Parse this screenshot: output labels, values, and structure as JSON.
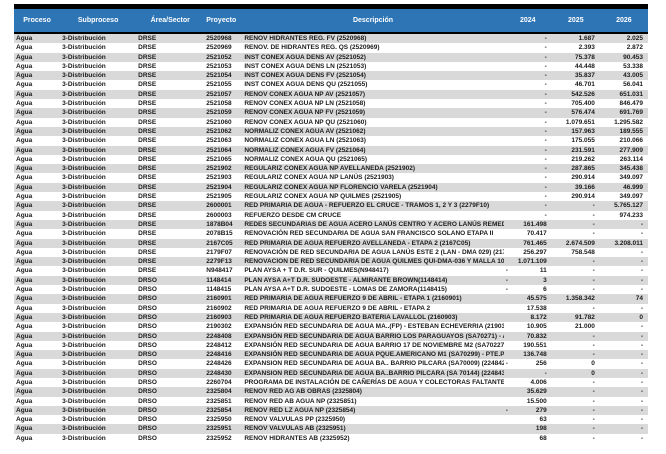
{
  "table": {
    "columns": [
      {
        "key": "proceso",
        "label": "Proceso"
      },
      {
        "key": "subproceso",
        "label": "Subproceso"
      },
      {
        "key": "area",
        "label": "Área/Sector"
      },
      {
        "key": "proyecto",
        "label": "Proyecto"
      },
      {
        "key": "descripcion",
        "label": "Descripción"
      },
      {
        "key": "y2024",
        "label": "2024"
      },
      {
        "key": "y2025",
        "label": "2025"
      },
      {
        "key": "y2026",
        "label": "2026"
      }
    ],
    "rows": [
      {
        "proceso": "Agua",
        "subproceso": "3-Distribución",
        "area": "DRSE",
        "proyecto": "2520968",
        "descripcion": "RENOV HIDRANTES REG. FV (2520968)",
        "y2024": "-",
        "y2025": "1.687",
        "y2026": "2.025"
      },
      {
        "proceso": "Agua",
        "subproceso": "3-Distribución",
        "area": "DRSE",
        "proyecto": "2520969",
        "descripcion": "RENOV. DE HIDRANTES REG. QS (2520969)",
        "y2024": "-",
        "y2025": "2.393",
        "y2026": "2.872"
      },
      {
        "proceso": "Agua",
        "subproceso": "3-Distribución",
        "area": "DRSE",
        "proyecto": "2521052",
        "descripcion": "INST CONEX AGUA DENS  AV (2521052)",
        "y2024": "-",
        "y2025": "75.378",
        "y2026": "90.453"
      },
      {
        "proceso": "Agua",
        "subproceso": "3-Distribución",
        "area": "DRSE",
        "proyecto": "2521053",
        "descripcion": "INST CONEX AGUA DENS  LN (2521053)",
        "y2024": "-",
        "y2025": "44.448",
        "y2026": "53.338"
      },
      {
        "proceso": "Agua",
        "subproceso": "3-Distribución",
        "area": "DRSE",
        "proyecto": "2521054",
        "descripcion": "INST CONEX AGUA DENS  FV (2521054)",
        "y2024": "-",
        "y2025": "35.837",
        "y2026": "43.005"
      },
      {
        "proceso": "Agua",
        "subproceso": "3-Distribución",
        "area": "DRSE",
        "proyecto": "2521055",
        "descripcion": "INST CONEX AGUA DENS  QU (2521055)",
        "y2024": "-",
        "y2025": "46.701",
        "y2026": "56.041"
      },
      {
        "proceso": "Agua",
        "subproceso": "3-Distribución",
        "area": "DRSE",
        "proyecto": "2521057",
        "descripcion": "RENOV CONEX AGUA NP  AV (2521057)",
        "y2024": "-",
        "y2025": "542.526",
        "y2026": "651.031"
      },
      {
        "proceso": "Agua",
        "subproceso": "3-Distribución",
        "area": "DRSE",
        "proyecto": "2521058",
        "descripcion": "RENOV CONEX AGUA NP  LN (2521058)",
        "y2024": "-",
        "y2025": "705.400",
        "y2026": "846.479"
      },
      {
        "proceso": "Agua",
        "subproceso": "3-Distribución",
        "area": "DRSE",
        "proyecto": "2521059",
        "descripcion": "RENOV CONEX AGUA NP  FV (2521059)",
        "y2024": "-",
        "y2025": "576.474",
        "y2026": "691.769"
      },
      {
        "proceso": "Agua",
        "subproceso": "3-Distribución",
        "area": "DRSE",
        "proyecto": "2521060",
        "descripcion": "RENOV CONEX AGUA NP  QU (2521060)",
        "y2024": "-",
        "y2025": "1.079.651",
        "y2026": "1.295.582"
      },
      {
        "proceso": "Agua",
        "subproceso": "3-Distribución",
        "area": "DRSE",
        "proyecto": "2521062",
        "descripcion": "NORMALIZ CONEX AGUA  AV (2521062)",
        "y2024": "-",
        "y2025": "157.963",
        "y2026": "189.555"
      },
      {
        "proceso": "Agua",
        "subproceso": "3-Distribución",
        "area": "DRSE",
        "proyecto": "2521063",
        "descripcion": "NORMALIZ CONEX AGUA  LN (2521063)",
        "y2024": "-",
        "y2025": "175.055",
        "y2026": "210.066"
      },
      {
        "proceso": "Agua",
        "subproceso": "3-Distribución",
        "area": "DRSE",
        "proyecto": "2521064",
        "descripcion": "NORMALIZ CONEX AGUA  FV (2521064)",
        "y2024": "-",
        "y2025": "231.591",
        "y2026": "277.909"
      },
      {
        "proceso": "Agua",
        "subproceso": "3-Distribución",
        "area": "DRSE",
        "proyecto": "2521065",
        "descripcion": "NORMALIZ CONEX AGUA  QU (2521065)",
        "y2024": "-",
        "y2025": "219.262",
        "y2026": "263.114"
      },
      {
        "proceso": "Agua",
        "subproceso": "3-Distribución",
        "area": "DRSE",
        "proyecto": "2521902",
        "descripcion": "REGULARIZ CONEX AGUA NP AVELLANEDA (2521902)",
        "y2024": "-",
        "y2025": "287.865",
        "y2026": "345.438"
      },
      {
        "proceso": "Agua",
        "subproceso": "3-Distribución",
        "area": "DRSE",
        "proyecto": "2521903",
        "descripcion": "REGULARIZ CONEX AGUA NP LANÚS (2521903)",
        "y2024": "-",
        "y2025": "290.914",
        "y2026": "349.097"
      },
      {
        "proceso": "Agua",
        "subproceso": "3-Distribución",
        "area": "DRSE",
        "proyecto": "2521904",
        "descripcion": "REGULARIZ CONEX AGUA NP FLORENCIO VARELA (2521904)",
        "y2024": "-",
        "y2025": "39.166",
        "y2026": "46.999"
      },
      {
        "proceso": "Agua",
        "subproceso": "3-Distribución",
        "area": "DRSE",
        "proyecto": "2521905",
        "descripcion": "REGULARIZ CONEX AGUA NP QUILMES (2521905)",
        "y2024": "-",
        "y2025": "290.914",
        "y2026": "349.097"
      },
      {
        "proceso": "Agua",
        "subproceso": "3-Distribución",
        "area": "DRSE",
        "proyecto": "2600001",
        "descripcion": "RED PRIMARIA DE AGUA - REFUERZO EL CRUCE - TRAMOS 1, 2 Y 3 (2279F10)",
        "y2024": "-",
        "y2025": "-",
        "y2026": "5.765.127"
      },
      {
        "proceso": "Agua",
        "subproceso": "3-Distribución",
        "area": "DRSE",
        "proyecto": "2600003",
        "descripcion": "REFUERZO DESDE CM CRUCE",
        "y2024": "-",
        "y2025": "-",
        "y2026": "974.233"
      },
      {
        "proceso": "Agua",
        "subproceso": "3-Distribución",
        "area": "DRSE",
        "proyecto": "1878B04",
        "descripcion": "REDES SECUNDARIAS DE AGUA ACERO LANÚS CENTRO Y ACERO LANÚS REMEDIOS DE ESCALA",
        "y2024": "161.498",
        "y2025": "-",
        "y2026": "-"
      },
      {
        "proceso": "Agua",
        "subproceso": "3-Distribución",
        "area": "DRSE",
        "proyecto": "2078B15",
        "descripcion": "RENOVACIÓN  RED SECUNDARIA DE AGUA SAN FRANCISCO SOLANO  ETAPA II",
        "y2024": "70.417",
        "y2025": "-",
        "y2026": "-"
      },
      {
        "proceso": "Agua",
        "subproceso": "3-Distribución",
        "area": "DRSE",
        "proyecto": "2167C05",
        "descripcion": "RED PRIMARIA DE AGUA REFUERZO AVELLANEDA - ETAPA 2 (2167C05)",
        "y2024": "761.465",
        "y2025": "2.674.509",
        "y2026": "3.208.011"
      },
      {
        "proceso": "Agua",
        "subproceso": "3-Distribución",
        "area": "DRSE",
        "proyecto": "2179F07",
        "descripcion": "RENOVACIÓN DE RED SECUNDARIA DE AGUA LANÚS ESTE 2 (LAN - DMA 029) (2179F07)",
        "y2024": "256.297",
        "y2025": "758.548",
        "y2026": "-"
      },
      {
        "proceso": "Agua",
        "subproceso": "3-Distribución",
        "area": "DRSE",
        "proyecto": "2279F13",
        "descripcion": "RENOVACION DE RED SECUNDARIA DE AGUA QUILMES QUI-DMA-036 Y MALLA 102",
        "y2024": "1.071.109",
        "y2025": "-",
        "y2026": "-"
      },
      {
        "proceso": "Agua",
        "subproceso": "3-Distribución",
        "area": "DRSE",
        "proyecto": "N948417",
        "descripcion": "PLAN AYSA + T D.R. SUR - QUILMES(N948417)",
        "y2024": "- 11",
        "y2025": "-",
        "y2026": "-"
      },
      {
        "proceso": "Agua",
        "subproceso": "3-Distribución",
        "area": "DRSO",
        "proyecto": "1148414",
        "descripcion": "PLAN AYSA A+T D.R. SUDOESTE - ALMIRANTE BROWN(1148414)",
        "y2024": "- 3",
        "y2025": "-",
        "y2026": "-"
      },
      {
        "proceso": "Agua",
        "subproceso": "3-Distribución",
        "area": "DRSO",
        "proyecto": "1148415",
        "descripcion": "PLAN AYSA A+T D.R. SUDOESTE - LOMAS DE ZAMORA(1148415)",
        "y2024": "- 6",
        "y2025": "-",
        "y2026": "-"
      },
      {
        "proceso": "Agua",
        "subproceso": "3-Distribución",
        "area": "DRSO",
        "proyecto": "2160901",
        "descripcion": "RED PRIMARIA DE AGUA REFUERZO 9 DE ABRIL - ETAPA 1 (2160901)",
        "y2024": "45.575",
        "y2025": "1.358.342",
        "y2026": "74"
      },
      {
        "proceso": "Agua",
        "subproceso": "3-Distribución",
        "area": "DRSO",
        "proyecto": "2160902",
        "descripcion": "RED PRIMARIA DE AGUA REFUERZO 9 DE ABRIL - ETAPA 2",
        "y2024": "17.538",
        "y2025": "-",
        "y2026": "-"
      },
      {
        "proceso": "Agua",
        "subproceso": "3-Distribución",
        "area": "DRSO",
        "proyecto": "2160903",
        "descripcion": "RED PRIMARIA DE AGUA REFUERZO BATERIA LAVALLOL (2160903)",
        "y2024": "8.172",
        "y2025": "91.782",
        "y2026": "0"
      },
      {
        "proceso": "Agua",
        "subproceso": "3-Distribución",
        "area": "DRSO",
        "proyecto": "2190302",
        "descripcion": "EXPANSIÓN RED SECUNDARIA DE AGUA MA..(FP) - ESTEBAN ECHEVERRIA (2190302)",
        "y2024": "10.905",
        "y2025": "21.000",
        "y2026": "-"
      },
      {
        "proceso": "Agua",
        "subproceso": "3-Distribución",
        "area": "DRSO",
        "proyecto": "2248408",
        "descripcion": "EXPANSIÓN RED SECUNDARIA DE AGUA BARRIO LOS PARAGUAYOS (SA70271) - ALMIRANTE BR -",
        "y2024": "70.832",
        "y2025": "-",
        "y2026": "-"
      },
      {
        "proceso": "Agua",
        "subproceso": "3-Distribución",
        "area": "DRSO",
        "proyecto": "2248412",
        "descripcion": "EXPANSIÓN RED SECUNDARIA DE AGUA BARRIO 17 DE NOVIEMBRE M2 (SA70227) - LOMAS DE",
        "y2024": "190.551",
        "y2025": "-",
        "y2026": "-"
      },
      {
        "proceso": "Agua",
        "subproceso": "3-Distribución",
        "area": "DRSO",
        "proyecto": "2248416",
        "descripcion": "EXPANSIÓN RED SECUNDARIA DE AGUA PQUE.AMERICANO M1 (SA70299) - PTE.PERON",
        "y2024": "136.748",
        "y2025": "-",
        "y2026": "-"
      },
      {
        "proceso": "Agua",
        "subproceso": "3-Distribución",
        "area": "DRSO",
        "proyecto": "2248426",
        "descripcion": "EXPANSION RED SECUNDARIA DE AGUA BA.. BARRIO PILCARA (SA70009) (2248426)",
        "y2024": "- 256",
        "y2025": "0",
        "y2026": "-"
      },
      {
        "proceso": "Agua",
        "subproceso": "3-Distribución",
        "area": "DRSO",
        "proyecto": "2248430",
        "descripcion": "EXPANSION RED SECUNDARIA DE AGUA BA..BARRIO PILCARA (SA 70144) (2248430)",
        "y2024": "-",
        "y2025": "0",
        "y2026": "-"
      },
      {
        "proceso": "Agua",
        "subproceso": "3-Distribución",
        "area": "DRSO",
        "proyecto": "2260704",
        "descripcion": "PROGRAMA DE INSTALACIÓN DE CAÑERÍAS DE AGUA Y COLECTORAS FALTANTES 2021-2023 D",
        "y2024": "4.006",
        "y2025": "-",
        "y2026": "-"
      },
      {
        "proceso": "Agua",
        "subproceso": "3-Distribución",
        "area": "DRSO",
        "proyecto": "2325804",
        "descripcion": "RENOV RED AG AB OBRAS (2325804)",
        "y2024": "35.629",
        "y2025": "-",
        "y2026": "-"
      },
      {
        "proceso": "Agua",
        "subproceso": "3-Distribución",
        "area": "DRSO",
        "proyecto": "2325851",
        "descripcion": "RENOV RED AB AGUA NP (2325851)",
        "y2024": "15.500",
        "y2025": "-",
        "y2026": "-"
      },
      {
        "proceso": "Agua",
        "subproceso": "3-Distribución",
        "area": "DRSO",
        "proyecto": "2325854",
        "descripcion": "RENOV RED LZ AGUA NP (2325854)",
        "y2024": "- 279",
        "y2025": "-",
        "y2026": "-"
      },
      {
        "proceso": "Agua",
        "subproceso": "3-Distribución",
        "area": "DRSO",
        "proyecto": "2325950",
        "descripcion": "RENOV VALVULAS PP (2325950)",
        "y2024": "63",
        "y2025": "-",
        "y2026": "-"
      },
      {
        "proceso": "Agua",
        "subproceso": "3-Distribución",
        "area": "DRSO",
        "proyecto": "2325951",
        "descripcion": "RENOV VALVULAS AB (2325951)",
        "y2024": "198",
        "y2025": "-",
        "y2026": "-"
      },
      {
        "proceso": "Agua",
        "subproceso": "3-Distribución",
        "area": "DRSO",
        "proyecto": "2325952",
        "descripcion": "RENOV HIDRANTES AB (2325952)",
        "y2024": "68",
        "y2025": "-",
        "y2026": "-"
      }
    ],
    "colors": {
      "header_bg": "#2E75B6",
      "header_text": "#ffffff",
      "alt_row_bg": "#D9D9D9",
      "top_bar": "#000000"
    }
  }
}
